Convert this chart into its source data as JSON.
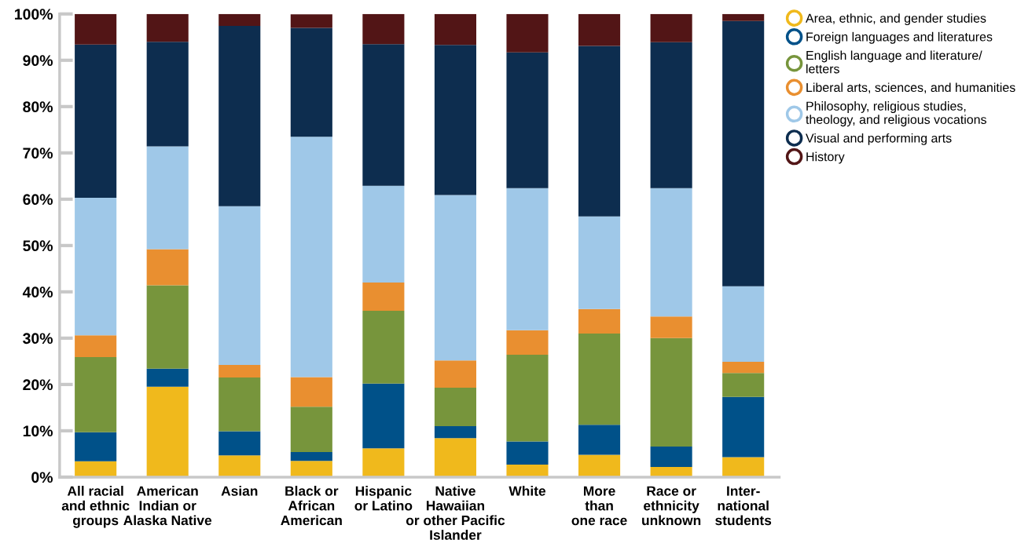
{
  "chart_data": {
    "type": "bar",
    "stacked": true,
    "categories": [
      "All racial\nand ethnic\ngroups",
      "American\nIndian or\nAlaska Native",
      "Asian",
      "Black or\nAfrican\nAmerican",
      "Hispanic\nor Latino",
      "Native\nHawaiian\nor other Pacific\nIslander",
      "White",
      "More\nthan\none race",
      "Race or\nethnicity\nunknown",
      "Inter-\nnational\nstudents"
    ],
    "series": [
      {
        "name": "Area, ethnic, and gender studies",
        "color": "#f0b91c",
        "values": [
          3.4,
          19.5,
          4.7,
          3.5,
          6.2,
          8.4,
          2.7,
          4.8,
          2.2,
          4.3
        ]
      },
      {
        "name": "Foreign languages and literatures",
        "color": "#005189",
        "values": [
          6.3,
          3.9,
          5.2,
          1.9,
          14.0,
          2.6,
          5.0,
          6.5,
          4.4,
          13.0
        ]
      },
      {
        "name": "English language and literature/\nletters",
        "color": "#77953c",
        "values": [
          16.2,
          18.0,
          11.6,
          9.8,
          15.7,
          8.3,
          18.7,
          19.7,
          23.4,
          5.2
        ]
      },
      {
        "name": "Liberal arts, sciences, and humanities",
        "color": "#e98f30",
        "values": [
          4.7,
          7.8,
          2.7,
          6.4,
          6.1,
          5.9,
          5.3,
          5.3,
          4.7,
          2.4
        ]
      },
      {
        "name": "Philosophy, religious studies,\ntheology, and religious vocations",
        "color": "#9fc8e8",
        "values": [
          29.7,
          22.2,
          34.3,
          51.9,
          20.9,
          35.7,
          30.7,
          20.0,
          27.7,
          16.3
        ]
      },
      {
        "name": "Visual and performing arts",
        "color": "#0d2d4f",
        "values": [
          33.1,
          22.6,
          38.9,
          23.5,
          30.6,
          32.4,
          29.3,
          36.8,
          31.5,
          57.3
        ]
      },
      {
        "name": "History",
        "color": "#521516",
        "values": [
          6.6,
          6.0,
          2.6,
          2.9,
          6.5,
          6.7,
          8.3,
          6.9,
          6.1,
          1.5
        ]
      }
    ],
    "ylim": [
      0,
      100
    ],
    "yticks": [
      {
        "value": 0,
        "label": "0%"
      },
      {
        "value": 10,
        "label": "10%"
      },
      {
        "value": 20,
        "label": "20%"
      },
      {
        "value": 30,
        "label": "30%"
      },
      {
        "value": 40,
        "label": "40%"
      },
      {
        "value": 50,
        "label": "50%"
      },
      {
        "value": 60,
        "label": "60%"
      },
      {
        "value": 70,
        "label": "70%"
      },
      {
        "value": 80,
        "label": "80%"
      },
      {
        "value": 90,
        "label": "90%"
      },
      {
        "value": 100,
        "label": "100%"
      }
    ],
    "grid": false,
    "legend": "top right",
    "marker": "circle"
  }
}
